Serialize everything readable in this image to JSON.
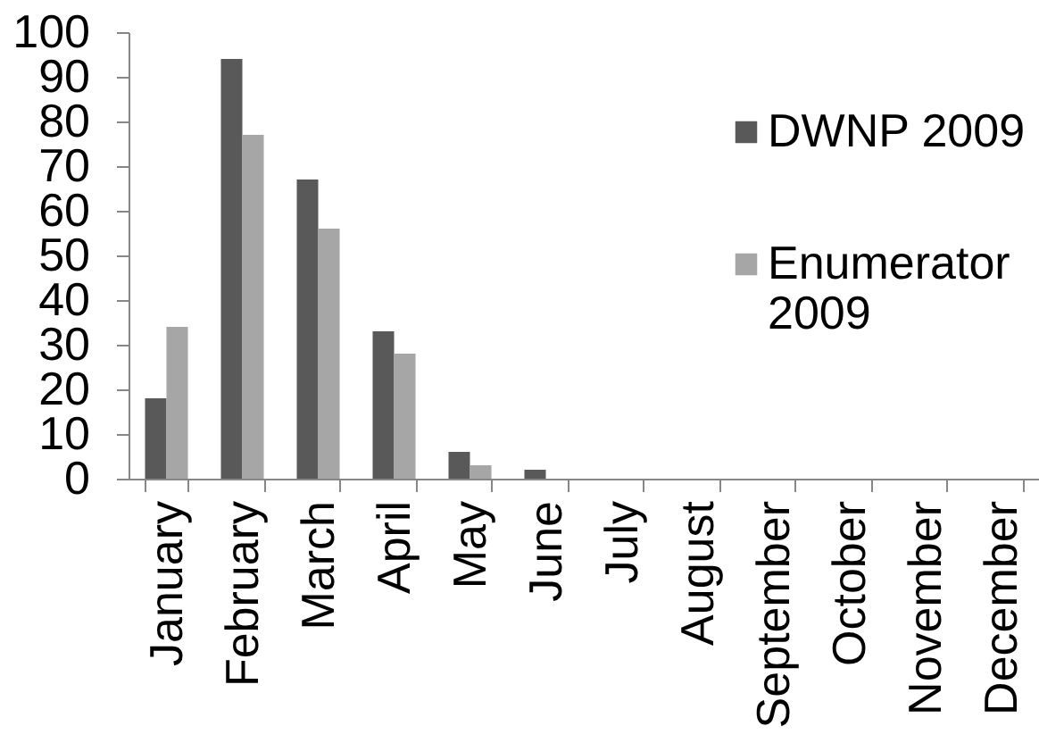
{
  "chart_data": {
    "type": "bar",
    "categories": [
      "January",
      "February",
      "March",
      "April",
      "May",
      "June",
      "July",
      "August",
      "September",
      "October",
      "November",
      "December"
    ],
    "series": [
      {
        "name": "DWNP 2009",
        "color": "#595959",
        "values": [
          18,
          94,
          67,
          33,
          6,
          2,
          0,
          0,
          0,
          0,
          0,
          0
        ]
      },
      {
        "name": "Enumerator 2009",
        "color": "#a6a6a6",
        "values": [
          34,
          77,
          56,
          28,
          3,
          0,
          0,
          0,
          0,
          0,
          0,
          0
        ]
      }
    ],
    "ylim": [
      0,
      100
    ],
    "yticks": [
      0,
      10,
      20,
      30,
      40,
      50,
      60,
      70,
      80,
      90,
      100
    ],
    "legend": "right"
  }
}
